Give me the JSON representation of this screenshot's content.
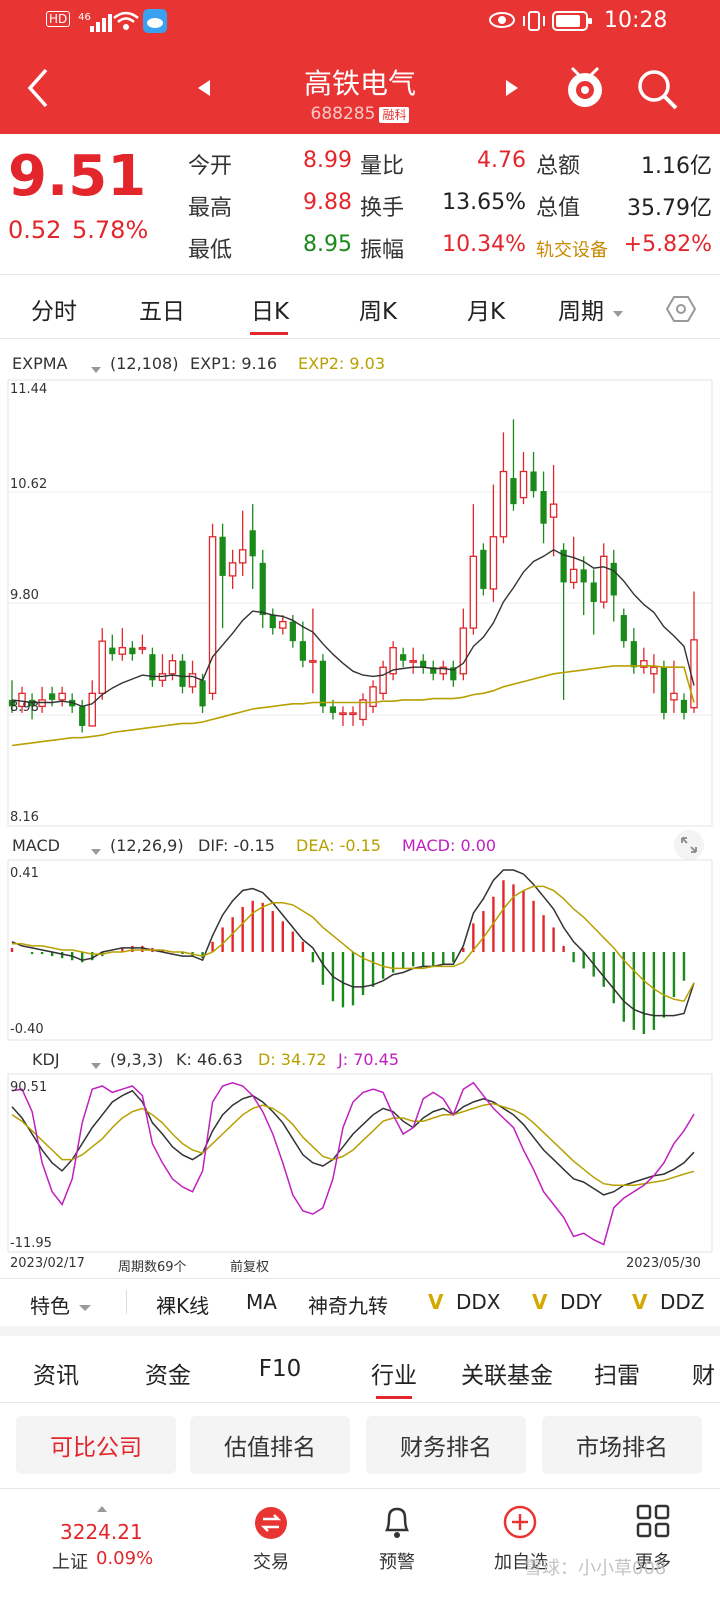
{
  "status": {
    "time": "10:28",
    "hd": "HD",
    "net": "46"
  },
  "header": {
    "title": "高铁电气",
    "code": "688285",
    "tag": "融科"
  },
  "quote": {
    "price": "9.51",
    "change": "0.52",
    "change_pct": "5.78%",
    "rows": [
      {
        "l1": "今开",
        "v1": "8.99",
        "l2": "量比",
        "v2": "4.76",
        "l3": "总额",
        "v3": "1.16亿"
      },
      {
        "l1": "最高",
        "v1": "9.88",
        "l2": "换手",
        "v2": "13.65%",
        "l3": "总值",
        "v3": "35.79亿"
      },
      {
        "l1": "最低",
        "v1": "8.95",
        "l2": "振幅",
        "v2": "10.34%",
        "l3": "轨交设备",
        "v3": "+5.82%"
      }
    ]
  },
  "period_tabs": [
    "分时",
    "五日",
    "日K",
    "周K",
    "月K",
    "周期"
  ],
  "indicators": {
    "expma": {
      "name": "EXPMA",
      "params": "(12,108)",
      "exp1": "EXP1: 9.16",
      "exp2": "EXP2: 9.03"
    },
    "macd": {
      "name": "MACD",
      "params": "(12,26,9)",
      "dif": "DIF: -0.15",
      "dea": "DEA: -0.15",
      "macd": "MACD: 0.00"
    },
    "kdj": {
      "name": "KDJ",
      "params": "(9,3,3)",
      "k": "K: 46.63",
      "d": "D: 34.72",
      "j": "J: 70.45"
    }
  },
  "axis": {
    "price": [
      "11.44",
      "10.62",
      "9.80",
      "8.98",
      "8.16"
    ],
    "macd": [
      "0.41",
      "-0.40"
    ],
    "kdj": [
      "90.51",
      "-11.95"
    ],
    "start_date": "2023/02/17",
    "period_count": "周期数69个",
    "adjust": "前复权",
    "end_date": "2023/05/30"
  },
  "feature_bar": {
    "items": [
      "特色",
      "裸K线",
      "MA",
      "神奇九转"
    ],
    "v_items": [
      "DDX",
      "DDY",
      "DDZ"
    ]
  },
  "info_tabs": [
    "资讯",
    "资金",
    "F10",
    "行业",
    "关联基金",
    "扫雷",
    "财"
  ],
  "chips": [
    "可比公司",
    "估值排名",
    "财务排名",
    "市场排名"
  ],
  "bottom": {
    "index_value": "3224.21",
    "index_name": "上证",
    "index_pct": "0.09%",
    "items": [
      "交易",
      "预警",
      "加自选",
      "更多"
    ],
    "watermark": "雪球：小小草008"
  },
  "colors": {
    "up": "#e3262b",
    "down": "#1a8a1a",
    "header": "#e93434",
    "exp1": "#333333",
    "exp2": "#b8a000",
    "j": "#c020c0"
  },
  "chart_data": {
    "type": "candlestick",
    "ylim": [
      8.16,
      11.44
    ],
    "candles": [
      [
        9.05,
        9.0,
        9.2,
        8.95
      ],
      [
        9.0,
        9.1,
        9.15,
        8.95
      ],
      [
        9.05,
        9.0,
        9.1,
        8.9
      ],
      [
        9.0,
        9.05,
        9.15,
        8.95
      ],
      [
        9.1,
        9.05,
        9.15,
        9.0
      ],
      [
        9.05,
        9.1,
        9.15,
        9.0
      ],
      [
        9.05,
        9.0,
        9.1,
        8.95
      ],
      [
        9.0,
        8.85,
        9.05,
        8.8
      ],
      [
        8.85,
        9.1,
        9.2,
        8.85
      ],
      [
        9.1,
        9.5,
        9.6,
        9.05
      ],
      [
        9.45,
        9.4,
        9.55,
        9.35
      ],
      [
        9.4,
        9.45,
        9.6,
        9.35
      ],
      [
        9.45,
        9.4,
        9.5,
        9.35
      ],
      [
        9.45,
        9.45,
        9.55,
        9.4
      ],
      [
        9.4,
        9.2,
        9.45,
        9.15
      ],
      [
        9.2,
        9.25,
        9.4,
        9.15
      ],
      [
        9.25,
        9.35,
        9.4,
        9.2
      ],
      [
        9.35,
        9.15,
        9.4,
        9.1
      ],
      [
        9.15,
        9.25,
        9.35,
        9.1
      ],
      [
        9.2,
        9.0,
        9.25,
        8.95
      ],
      [
        9.1,
        10.3,
        10.4,
        9.05
      ],
      [
        10.3,
        10.0,
        10.4,
        9.6
      ],
      [
        10.0,
        10.1,
        10.2,
        9.9
      ],
      [
        10.1,
        10.2,
        10.5,
        10.0
      ],
      [
        10.35,
        10.15,
        10.55,
        9.9
      ],
      [
        10.1,
        9.7,
        10.2,
        9.6
      ],
      [
        9.7,
        9.6,
        9.75,
        9.55
      ],
      [
        9.6,
        9.65,
        9.7,
        9.55
      ],
      [
        9.65,
        9.5,
        9.7,
        9.45
      ],
      [
        9.5,
        9.35,
        9.65,
        9.3
      ],
      [
        9.35,
        9.35,
        9.75,
        9.1
      ],
      [
        9.35,
        9.0,
        9.4,
        8.95
      ],
      [
        9.0,
        8.95,
        9.05,
        8.9
      ],
      [
        8.95,
        8.95,
        9.0,
        8.85
      ],
      [
        8.95,
        8.95,
        9.0,
        8.85
      ],
      [
        8.9,
        9.05,
        9.1,
        8.85
      ],
      [
        9.0,
        9.15,
        9.2,
        8.95
      ],
      [
        9.1,
        9.3,
        9.35,
        9.05
      ],
      [
        9.25,
        9.45,
        9.5,
        9.2
      ],
      [
        9.4,
        9.35,
        9.45,
        9.3
      ],
      [
        9.35,
        9.35,
        9.45,
        9.25
      ],
      [
        9.35,
        9.3,
        9.4,
        9.25
      ],
      [
        9.3,
        9.25,
        9.35,
        9.2
      ],
      [
        9.25,
        9.3,
        9.35,
        9.2
      ],
      [
        9.3,
        9.2,
        9.35,
        9.15
      ],
      [
        9.25,
        9.6,
        9.75,
        9.2
      ],
      [
        9.6,
        10.15,
        10.55,
        9.55
      ],
      [
        10.2,
        9.9,
        10.25,
        9.85
      ],
      [
        9.9,
        10.3,
        10.7,
        9.8
      ],
      [
        10.3,
        10.8,
        11.1,
        10.25
      ],
      [
        10.75,
        10.55,
        11.2,
        10.5
      ],
      [
        10.6,
        10.8,
        10.95,
        10.55
      ],
      [
        10.8,
        10.65,
        10.95,
        10.6
      ],
      [
        10.65,
        10.4,
        10.8,
        10.25
      ],
      [
        10.45,
        10.55,
        10.85,
        10.15
      ],
      [
        10.2,
        9.95,
        10.25,
        9.05
      ],
      [
        9.95,
        10.05,
        10.3,
        9.9
      ],
      [
        10.05,
        9.95,
        10.15,
        9.7
      ],
      [
        9.95,
        9.8,
        10.05,
        9.55
      ],
      [
        9.8,
        10.15,
        10.25,
        9.75
      ],
      [
        10.1,
        9.85,
        10.2,
        9.65
      ],
      [
        9.7,
        9.5,
        9.75,
        9.45
      ],
      [
        9.5,
        9.3,
        9.6,
        9.25
      ],
      [
        9.3,
        9.35,
        9.45,
        9.25
      ],
      [
        9.25,
        9.3,
        9.4,
        9.1
      ],
      [
        9.3,
        8.95,
        9.35,
        8.9
      ],
      [
        9.05,
        9.1,
        9.35,
        8.95
      ],
      [
        9.05,
        8.95,
        9.1,
        8.9
      ],
      [
        8.99,
        9.51,
        9.88,
        8.95
      ]
    ],
    "exp1": [
      9.05,
      9.04,
      9.03,
      9.03,
      9.03,
      9.04,
      9.03,
      9.0,
      9.02,
      9.09,
      9.14,
      9.18,
      9.21,
      9.24,
      9.23,
      9.23,
      9.24,
      9.23,
      9.23,
      9.2,
      9.38,
      9.47,
      9.56,
      9.66,
      9.73,
      9.72,
      9.7,
      9.69,
      9.66,
      9.61,
      9.57,
      9.48,
      9.4,
      9.33,
      9.27,
      9.24,
      9.23,
      9.24,
      9.28,
      9.29,
      9.3,
      9.3,
      9.29,
      9.29,
      9.28,
      9.33,
      9.46,
      9.53,
      9.64,
      9.8,
      9.91,
      10.03,
      10.11,
      10.15,
      10.2,
      10.16,
      10.14,
      10.11,
      10.06,
      10.07,
      10.04,
      9.96,
      9.86,
      9.78,
      9.72,
      9.61,
      9.54,
      9.46,
      9.16
    ],
    "exp2": [
      8.7,
      8.71,
      8.72,
      8.73,
      8.74,
      8.75,
      8.76,
      8.76,
      8.77,
      8.78,
      8.8,
      8.81,
      8.82,
      8.83,
      8.84,
      8.85,
      8.86,
      8.87,
      8.87,
      8.88,
      8.9,
      8.92,
      8.94,
      8.96,
      8.98,
      8.99,
      9.0,
      9.01,
      9.02,
      9.02,
      9.03,
      9.03,
      9.03,
      9.03,
      9.03,
      9.03,
      9.03,
      9.04,
      9.04,
      9.05,
      9.05,
      9.05,
      9.06,
      9.06,
      9.06,
      9.07,
      9.09,
      9.1,
      9.12,
      9.15,
      9.17,
      9.19,
      9.21,
      9.23,
      9.25,
      9.26,
      9.27,
      9.28,
      9.29,
      9.3,
      9.31,
      9.31,
      9.31,
      9.31,
      9.31,
      9.3,
      9.3,
      9.3,
      9.03
    ],
    "macd_ylim": [
      -0.4,
      0.41
    ],
    "macd_hist": [
      0.02,
      0.0,
      -0.01,
      -0.01,
      -0.02,
      -0.03,
      -0.04,
      -0.05,
      -0.04,
      -0.02,
      0.0,
      0.02,
      0.03,
      0.03,
      0.02,
      0.01,
      0.0,
      -0.01,
      -0.02,
      -0.03,
      0.05,
      0.12,
      0.17,
      0.22,
      0.25,
      0.24,
      0.2,
      0.15,
      0.1,
      0.05,
      -0.05,
      -0.16,
      -0.24,
      -0.27,
      -0.26,
      -0.21,
      -0.17,
      -0.13,
      -0.1,
      -0.08,
      -0.07,
      -0.07,
      -0.07,
      -0.06,
      -0.05,
      0.02,
      0.14,
      0.2,
      0.27,
      0.35,
      0.33,
      0.3,
      0.25,
      0.18,
      0.12,
      0.03,
      -0.05,
      -0.08,
      -0.12,
      -0.17,
      -0.25,
      -0.34,
      -0.38,
      -0.4,
      -0.38,
      -0.32,
      -0.22,
      -0.14,
      0.0
    ],
    "macd_dif": [
      0.05,
      0.03,
      0.02,
      0.01,
      0.0,
      -0.01,
      -0.02,
      -0.04,
      -0.03,
      0.0,
      0.01,
      0.02,
      0.02,
      0.02,
      0.01,
      0.0,
      -0.01,
      -0.02,
      -0.02,
      -0.04,
      0.08,
      0.18,
      0.25,
      0.3,
      0.31,
      0.29,
      0.24,
      0.18,
      0.12,
      0.06,
      0.02,
      -0.06,
      -0.12,
      -0.15,
      -0.17,
      -0.17,
      -0.16,
      -0.14,
      -0.11,
      -0.1,
      -0.08,
      -0.07,
      -0.07,
      -0.06,
      -0.06,
      0.03,
      0.19,
      0.26,
      0.35,
      0.4,
      0.4,
      0.38,
      0.33,
      0.27,
      0.21,
      0.12,
      0.05,
      0.0,
      -0.06,
      -0.12,
      -0.18,
      -0.24,
      -0.28,
      -0.3,
      -0.31,
      -0.31,
      -0.31,
      -0.3,
      -0.15
    ],
    "macd_dea": [
      0.04,
      0.04,
      0.03,
      0.03,
      0.02,
      0.01,
      0.01,
      0.0,
      -0.01,
      -0.01,
      0.0,
      0.0,
      0.01,
      0.01,
      0.01,
      0.01,
      0.0,
      0.0,
      -0.01,
      -0.02,
      0.0,
      0.04,
      0.09,
      0.14,
      0.19,
      0.22,
      0.24,
      0.24,
      0.23,
      0.2,
      0.17,
      0.12,
      0.08,
      0.04,
      0.0,
      -0.03,
      -0.05,
      -0.07,
      -0.08,
      -0.08,
      -0.08,
      -0.08,
      -0.07,
      -0.07,
      -0.07,
      -0.05,
      0.01,
      0.07,
      0.14,
      0.21,
      0.27,
      0.3,
      0.32,
      0.32,
      0.3,
      0.26,
      0.21,
      0.17,
      0.12,
      0.07,
      0.02,
      -0.04,
      -0.09,
      -0.14,
      -0.18,
      -0.21,
      -0.23,
      -0.24,
      -0.15
    ],
    "kdj_ylim": [
      -11.95,
      90.51
    ],
    "kdj_k": [
      75,
      68,
      58,
      48,
      40,
      35,
      42,
      52,
      62,
      70,
      78,
      82,
      85,
      78,
      65,
      58,
      50,
      45,
      42,
      46,
      60,
      70,
      76,
      80,
      82,
      78,
      72,
      65,
      55,
      45,
      40,
      38,
      42,
      50,
      58,
      64,
      70,
      74,
      72,
      66,
      62,
      68,
      72,
      74,
      70,
      75,
      78,
      80,
      78,
      74,
      70,
      64,
      56,
      48,
      42,
      36,
      30,
      28,
      24,
      20,
      22,
      26,
      28,
      30,
      32,
      33,
      36,
      40,
      46.63
    ],
    "kdj_d": [
      70,
      66,
      60,
      54,
      48,
      42,
      42,
      45,
      50,
      55,
      62,
      68,
      72,
      74,
      70,
      65,
      58,
      52,
      48,
      46,
      52,
      58,
      64,
      70,
      74,
      76,
      74,
      70,
      64,
      56,
      50,
      44,
      42,
      44,
      48,
      54,
      60,
      66,
      68,
      68,
      66,
      66,
      68,
      70,
      70,
      72,
      74,
      76,
      77,
      75,
      73,
      70,
      65,
      59,
      53,
      47,
      41,
      36,
      31,
      27,
      26,
      26,
      26,
      27,
      28,
      29,
      31,
      33,
      34.72
    ],
    "kdj_j": [
      85,
      86,
      72,
      40,
      22,
      14,
      30,
      65,
      86,
      88,
      84,
      86,
      88,
      82,
      52,
      40,
      30,
      25,
      22,
      35,
      78,
      88,
      90,
      88,
      82,
      72,
      58,
      40,
      20,
      10,
      8,
      12,
      30,
      62,
      78,
      84,
      86,
      84,
      70,
      58,
      62,
      80,
      84,
      80,
      70,
      86,
      90,
      82,
      74,
      68,
      62,
      48,
      36,
      22,
      14,
      6,
      -6,
      -4,
      -8,
      -11,
      12,
      18,
      22,
      26,
      32,
      40,
      52,
      60,
      70.45
    ]
  }
}
